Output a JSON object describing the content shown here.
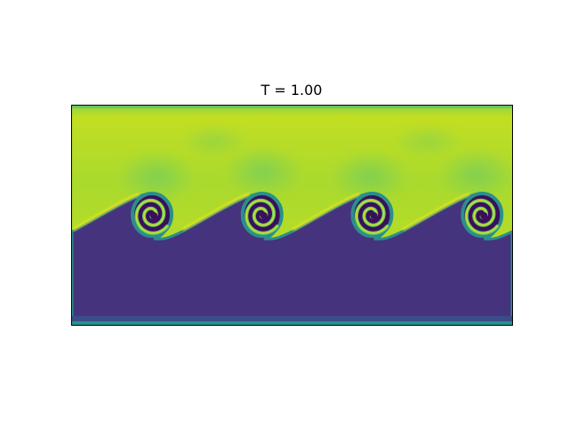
{
  "figure": {
    "title": "T = 1.00",
    "colormap": "viridis",
    "colors": {
      "upper_fluid": "#b7dc2a",
      "lower_fluid": "#45337e",
      "interface": "#2a8f8b",
      "bright_edge": "#e6e41d",
      "mid_green": "#6bc862",
      "dark_core": "#3a0f5c"
    },
    "vortex_count": 4
  }
}
